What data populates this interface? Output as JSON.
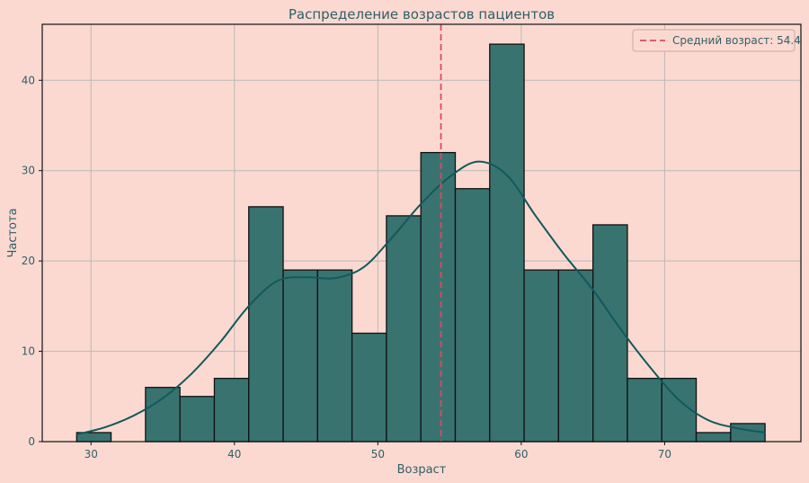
{
  "chart_data": {
    "type": "bar",
    "title": "Распределение возрастов пациентов",
    "xlabel": "Возраст",
    "ylabel": "Частота",
    "xlim": [
      26.6,
      79.5
    ],
    "ylim": [
      0,
      46.2
    ],
    "x_ticks": [
      30,
      40,
      50,
      60,
      70
    ],
    "y_ticks": [
      0,
      10,
      20,
      30,
      40
    ],
    "grid": true,
    "bins": [
      {
        "start": 29.0,
        "end": 31.4,
        "count": 1
      },
      {
        "start": 33.8,
        "end": 36.2,
        "count": 6
      },
      {
        "start": 36.2,
        "end": 38.6,
        "count": 5
      },
      {
        "start": 38.6,
        "end": 41.0,
        "count": 7
      },
      {
        "start": 41.0,
        "end": 43.4,
        "count": 26
      },
      {
        "start": 43.4,
        "end": 45.8,
        "count": 19
      },
      {
        "start": 45.8,
        "end": 48.2,
        "count": 19
      },
      {
        "start": 48.2,
        "end": 50.6,
        "count": 12
      },
      {
        "start": 50.6,
        "end": 53.0,
        "count": 25
      },
      {
        "start": 53.0,
        "end": 55.4,
        "count": 32
      },
      {
        "start": 55.4,
        "end": 57.8,
        "count": 28
      },
      {
        "start": 57.8,
        "end": 60.2,
        "count": 44
      },
      {
        "start": 60.2,
        "end": 62.6,
        "count": 19
      },
      {
        "start": 62.6,
        "end": 65.0,
        "count": 19
      },
      {
        "start": 65.0,
        "end": 67.4,
        "count": 24
      },
      {
        "start": 67.4,
        "end": 69.8,
        "count": 7
      },
      {
        "start": 69.8,
        "end": 72.2,
        "count": 7
      },
      {
        "start": 72.2,
        "end": 74.6,
        "count": 1
      },
      {
        "start": 74.6,
        "end": 77.0,
        "count": 2
      }
    ],
    "kde": {
      "x": [
        29,
        31,
        33,
        35,
        37,
        39,
        41,
        43,
        45,
        47,
        49,
        51,
        53,
        55,
        57,
        59,
        61,
        63,
        65,
        67,
        69,
        71,
        73,
        75,
        77
      ],
      "y": [
        0.8,
        1.6,
        2.9,
        4.8,
        7.5,
        11,
        15,
        17.8,
        18.2,
        18.1,
        19.3,
        22.6,
        26.3,
        29.3,
        31,
        29.5,
        25,
        20.7,
        16.8,
        12.3,
        8.2,
        4.6,
        2.4,
        1.5,
        1
      ]
    },
    "mean_line": {
      "value": 54.4,
      "label": "Средний возраст: 54.4"
    },
    "colors": {
      "background": "#fbd9d1",
      "bar_fill": "#387370",
      "bar_edge": "#111111",
      "kde_line": "#11595b",
      "mean_line": "#e04860",
      "grid": "#b9b9b9",
      "axis_text": "#2f6068"
    }
  }
}
